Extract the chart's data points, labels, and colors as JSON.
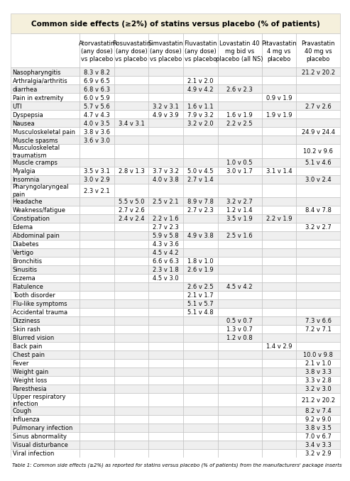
{
  "title": "Common side effects (≥2%) of statins versus placebo (% of patients)",
  "col_headers": [
    "",
    "Atorvastatin\n(any dose)\nvs placebo",
    "Rosuvastatin\n(any dose)\nvs placebo",
    "Simvastatin\n(any dose)\nvs placebo",
    "Fluvastatin\n(any dose)\nvs placebo",
    "Lovastatin 40\nmg bid vs\nplacebo (all NS)",
    "Pitavastatin\n4 mg vs\nplacebo",
    "Pravastatin\n40 mg vs\nplacebo"
  ],
  "rows": [
    [
      "Nasopharyngitis",
      "8.3 v 8.2",
      "",
      "",
      "",
      "",
      "",
      "21.2 v 20.2"
    ],
    [
      "Arthralgia/arthritis",
      "6.9 v 6.5",
      "",
      "",
      "2.1 v 2.0",
      "",
      "",
      ""
    ],
    [
      "diarrhea",
      "6.8 v 6.3",
      "",
      "",
      "4.9 v 4.2",
      "2.6 v 2.3",
      "",
      ""
    ],
    [
      "Pain in extremity",
      "6.0 v 5.9",
      "",
      "",
      "",
      "",
      "0.9 v 1.9",
      ""
    ],
    [
      "UTI",
      "5.7 v 5.6",
      "",
      "3.2 v 3.1",
      "1.6 v 1.1",
      "",
      "",
      "2.7 v 2.6"
    ],
    [
      "Dyspepsia",
      "4.7 v 4.3",
      "",
      "4.9 v 3.9",
      "7.9 v 3.2",
      "1.6 v 1.9",
      "1.9 v 1.9",
      ""
    ],
    [
      "Nausea",
      "4.0 v 3.5",
      "3.4 v 3.1",
      "",
      "3.2 v 2.0",
      "2.2 v 2.5",
      "",
      ""
    ],
    [
      "Musculoskeletal pain",
      "3.8 v 3.6",
      "",
      "",
      "",
      "",
      "",
      "24.9 v 24.4"
    ],
    [
      "Muscle spasms",
      "3.6 v 3.0",
      "",
      "",
      "",
      "",
      "",
      ""
    ],
    [
      "Musculoskeletal\ntraumatism",
      "",
      "",
      "",
      "",
      "",
      "",
      "10.2 v 9.6"
    ],
    [
      "Muscle cramps",
      "",
      "",
      "",
      "",
      "1.0 v 0.5",
      "",
      "5.1 v 4.6"
    ],
    [
      "Myalgia",
      "3.5 v 3.1",
      "2.8 v 1.3",
      "3.7 v 3.2",
      "5.0 v 4.5",
      "3.0 v 1.7",
      "3.1 v 1.4",
      ""
    ],
    [
      "Insomnia",
      "3.0 v 2.9",
      "",
      "4.0 v 3.8",
      "2.7 v 1.4",
      "",
      "",
      "3.0 v 2.4"
    ],
    [
      "Pharyngolaryngeal\npain",
      "2.3 v 2.1",
      "",
      "",
      "",
      "",
      "",
      ""
    ],
    [
      "Headache",
      "",
      "5.5 v 5.0",
      "2.5 v 2.1",
      "8.9 v 7.8",
      "3.2 v 2.7",
      "",
      ""
    ],
    [
      "Weakness/fatigue",
      "",
      "2.7 v 2.6",
      "",
      "2.7 v 2.3",
      "1.2 v 1.4",
      "",
      "8.4 v 7.8"
    ],
    [
      "Constipation",
      "",
      "2.4 v 2.4",
      "2.2 v 1.6",
      "",
      "3.5 v 1.9",
      "2.2 v 1.9",
      ""
    ],
    [
      "Edema",
      "",
      "",
      "2.7 v 2.3",
      "",
      "",
      "",
      "3.2 v 2.7"
    ],
    [
      "Abdominal pain",
      "",
      "",
      "5.9 v 5.8",
      "4.9 v 3.8",
      "2.5 v 1.6",
      "",
      ""
    ],
    [
      "Diabetes",
      "",
      "",
      "4.3 v 3.6",
      "",
      "",
      "",
      ""
    ],
    [
      "Vertigo",
      "",
      "",
      "4.5 v 4.2",
      "",
      "",
      "",
      ""
    ],
    [
      "Bronchitis",
      "",
      "",
      "6.6 v 6.3",
      "1.8 v 1.0",
      "",
      "",
      ""
    ],
    [
      "Sinusitis",
      "",
      "",
      "2.3 v 1.8",
      "2.6 v 1.9",
      "",
      "",
      ""
    ],
    [
      "Eczema",
      "",
      "",
      "4.5 v 3.0",
      "",
      "",
      "",
      ""
    ],
    [
      "Flatulence",
      "",
      "",
      "",
      "2.6 v 2.5",
      "4.5 v 4.2",
      "",
      ""
    ],
    [
      "Tooth disorder",
      "",
      "",
      "",
      "2.1 v 1.7",
      "",
      "",
      ""
    ],
    [
      "Flu-like symptoms",
      "",
      "",
      "",
      "5.1 v 5.7",
      "",
      "",
      ""
    ],
    [
      "Accidental trauma",
      "",
      "",
      "",
      "5.1 v 4.8",
      "",
      "",
      ""
    ],
    [
      "Dizziness",
      "",
      "",
      "",
      "",
      "0.5 v 0.7",
      "",
      "7.3 v 6.6"
    ],
    [
      "Skin rash",
      "",
      "",
      "",
      "",
      "1.3 v 0.7",
      "",
      "7.2 v 7.1"
    ],
    [
      "Blurred vision",
      "",
      "",
      "",
      "",
      "1.2 v 0.8",
      "",
      ""
    ],
    [
      "Back pain",
      "",
      "",
      "",
      "",
      "",
      "1.4 v 2.9",
      ""
    ],
    [
      "Chest pain",
      "",
      "",
      "",
      "",
      "",
      "",
      "10.0 v 9.8"
    ],
    [
      "Fever",
      "",
      "",
      "",
      "",
      "",
      "",
      "2.1 v 1.0"
    ],
    [
      "Weight gain",
      "",
      "",
      "",
      "",
      "",
      "",
      "3.8 v 3.3"
    ],
    [
      "Weight loss",
      "",
      "",
      "",
      "",
      "",
      "",
      "3.3 v 2.8"
    ],
    [
      "Paresthesia",
      "",
      "",
      "",
      "",
      "",
      "",
      "3.2 v 3.0"
    ],
    [
      "Upper respiratory\ninfection",
      "",
      "",
      "",
      "",
      "",
      "",
      "21.2 v 20.2"
    ],
    [
      "Cough",
      "",
      "",
      "",
      "",
      "",
      "",
      "8.2 v 7.4"
    ],
    [
      "Influenza",
      "",
      "",
      "",
      "",
      "",
      "",
      "9.2 v 9.0"
    ],
    [
      "Pulmonary infection",
      "",
      "",
      "",
      "",
      "",
      "",
      "3.8 v 3.5"
    ],
    [
      "Sinus abnormality",
      "",
      "",
      "",
      "",
      "",
      "",
      "7.0 v 6.7"
    ],
    [
      "Visual disturbance",
      "",
      "",
      "",
      "",
      "",
      "",
      "3.4 v 3.3"
    ],
    [
      "Viral infection",
      "",
      "",
      "",
      "",
      "",
      "",
      "3.2 v 2.9"
    ]
  ],
  "footer": "Table 1: Common side effects (≥2%) as reported for statins versus placebo (% of patients) from the manufacturers' package inserts",
  "title_bg": "#F5F0DC",
  "header_bg": "#FFFFFF",
  "row_bg_odd": "#FFFFFF",
  "row_bg_even": "#EFEFEF",
  "border_color": "#BBBBBB",
  "title_fontsize": 7.5,
  "header_fontsize": 6.0,
  "cell_fontsize": 6.0,
  "footer_fontsize": 5.0,
  "col_widths_rel": [
    2.2,
    1.1,
    1.1,
    1.1,
    1.1,
    1.4,
    1.1,
    1.4
  ]
}
